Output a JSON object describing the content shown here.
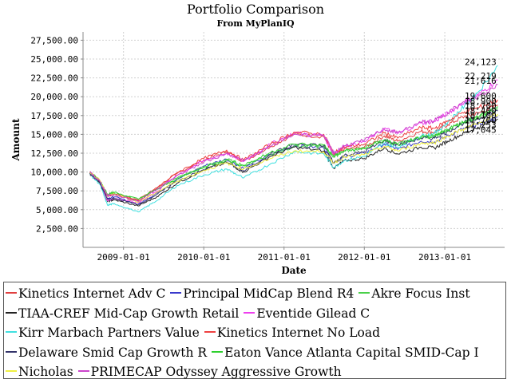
{
  "chart_data": {
    "type": "line",
    "title": "Portfolio Comparison",
    "subtitle": "From MyPlanIQ",
    "xlabel": "Date",
    "ylabel": "Amount",
    "x_start": "2008-07-01",
    "x_end": "2013-09-30",
    "x_ticks": [
      "2009-01-01",
      "2010-01-01",
      "2011-01-01",
      "2012-01-01",
      "2013-01-01"
    ],
    "ylim": [
      0,
      28600
    ],
    "y_ticks": [
      "2,500.00",
      "5,000.00",
      "7,500.00",
      "10,000.00",
      "12,500.00",
      "15,000.00",
      "17,500.00",
      "20,000.00",
      "22,500.00",
      "25,000.00",
      "27,500.00"
    ],
    "grid": true,
    "legend_position": "bottom",
    "dates": [
      "2008-08-01",
      "2008-09-15",
      "2008-10-20",
      "2008-11-20",
      "2009-03-09",
      "2009-06-01",
      "2009-09-01",
      "2010-01-01",
      "2010-04-15",
      "2010-07-01",
      "2010-11-01",
      "2011-02-15",
      "2011-07-01",
      "2011-08-15",
      "2011-10-01",
      "2012-01-01",
      "2012-04-01",
      "2012-06-01",
      "2012-09-15",
      "2012-11-15",
      "2013-01-15",
      "2013-04-01",
      "2013-06-01",
      "2013-08-30"
    ],
    "series": [
      {
        "name": "Kinetics Internet Adv C",
        "color": "#e04040",
        "values": [
          10000,
          8700,
          6800,
          7000,
          6200,
          7800,
          9800,
          11600,
          12700,
          11400,
          13400,
          15000,
          14700,
          12200,
          13000,
          13300,
          14800,
          14100,
          15400,
          15300,
          16300,
          17400,
          17800,
          18900
        ],
        "end_label": "18,900"
      },
      {
        "name": "Principal MidCap Blend R4",
        "color": "#3a3acc",
        "values": [
          9900,
          8700,
          6500,
          6700,
          5700,
          7200,
          9000,
          10800,
          11700,
          10500,
          12300,
          13500,
          13200,
          11200,
          12000,
          12500,
          13700,
          13000,
          14100,
          14000,
          14800,
          15800,
          16300,
          17253
        ],
        "end_label": "17,253"
      },
      {
        "name": "Akre Focus Inst",
        "color": "#4ad04a",
        "values": [
          9950,
          8850,
          7000,
          7200,
          6300,
          7700,
          9200,
          10700,
          11700,
          10900,
          12300,
          13400,
          13400,
          12000,
          12800,
          13200,
          14300,
          13700,
          14600,
          14800,
          15600,
          16700,
          17200,
          18400
        ],
        "end_label": "18,400"
      },
      {
        "name": "TIAA-CREF Mid-Cap Growth Retail",
        "color": "#222222",
        "values": [
          9800,
          8600,
          6100,
          6300,
          5500,
          6700,
          8500,
          10300,
          11300,
          10000,
          12100,
          13300,
          12800,
          10500,
          11500,
          11800,
          13200,
          12400,
          13300,
          13200,
          14100,
          15200,
          15900,
          17045
        ],
        "end_label": "17,045"
      },
      {
        "name": "Eventide Gilead C",
        "color": "#ee40ee",
        "values": [
          9900,
          8700,
          6200,
          6500,
          5900,
          7400,
          9600,
          11500,
          12500,
          11400,
          13700,
          15200,
          14800,
          12300,
          13400,
          14000,
          15800,
          15100,
          16500,
          16700,
          17800,
          19300,
          20200,
          22219
        ],
        "end_label": "22,219"
      },
      {
        "name": "Kirr Marbach Partners Value",
        "color": "#40e0e0",
        "values": [
          9700,
          8400,
          5600,
          5800,
          4700,
          6200,
          8200,
          9600,
          10400,
          9200,
          11100,
          12700,
          12400,
          10600,
          11500,
          12100,
          13800,
          13300,
          14800,
          15100,
          16600,
          18800,
          20600,
          24123
        ],
        "end_label": "24,123"
      },
      {
        "name": "Kinetics Internet No Load",
        "color": "#ee4040",
        "values": [
          10000,
          8800,
          6900,
          7100,
          6300,
          7900,
          9900,
          11800,
          12900,
          11600,
          13700,
          15300,
          15000,
          12500,
          13300,
          13700,
          15200,
          14500,
          15900,
          15800,
          16800,
          18000,
          18500,
          19600
        ],
        "end_label": "19,600"
      },
      {
        "name": "Delaware Smid Cap Growth R",
        "color": "#33336a",
        "values": [
          9850,
          8600,
          6400,
          6500,
          5700,
          7000,
          8800,
          10300,
          11300,
          10100,
          12400,
          13700,
          13500,
          11200,
          12200,
          12700,
          14200,
          13600,
          14500,
          14500,
          15400,
          16600,
          17100,
          18100
        ],
        "end_label": "18,100"
      },
      {
        "name": "Eaton Vance Atlanta Capital SMID-Cap I",
        "color": "#2ed02e",
        "values": [
          9950,
          8900,
          7100,
          7300,
          6400,
          7700,
          9100,
          10600,
          11600,
          10800,
          12600,
          13700,
          13600,
          12100,
          12800,
          13100,
          14200,
          13600,
          14600,
          14700,
          15600,
          16700,
          17300,
          18700
        ],
        "end_label": "18,700"
      },
      {
        "name": "Nicholas",
        "color": "#f0f040",
        "values": [
          9900,
          8900,
          6900,
          7100,
          6000,
          7300,
          8800,
          10200,
          11200,
          10400,
          11800,
          12800,
          12700,
          11200,
          12000,
          12300,
          13400,
          12800,
          13800,
          13900,
          14800,
          15800,
          16400,
          17700
        ],
        "end_label": "17,700"
      },
      {
        "name": "PRIMECAP Odyssey Aggressive Growth",
        "color": "#cc44cc",
        "values": [
          9950,
          8800,
          6900,
          7000,
          6100,
          7700,
          9500,
          11300,
          12500,
          11500,
          13400,
          15000,
          14900,
          12500,
          13500,
          14200,
          15700,
          15200,
          16600,
          16800,
          17900,
          19300,
          20000,
          21616
        ],
        "end_label": "21,616"
      }
    ],
    "legend_rows": [
      [
        0,
        1,
        2
      ],
      [
        3,
        4
      ],
      [
        5,
        6
      ],
      [
        7,
        8
      ],
      [
        9,
        10
      ]
    ]
  }
}
